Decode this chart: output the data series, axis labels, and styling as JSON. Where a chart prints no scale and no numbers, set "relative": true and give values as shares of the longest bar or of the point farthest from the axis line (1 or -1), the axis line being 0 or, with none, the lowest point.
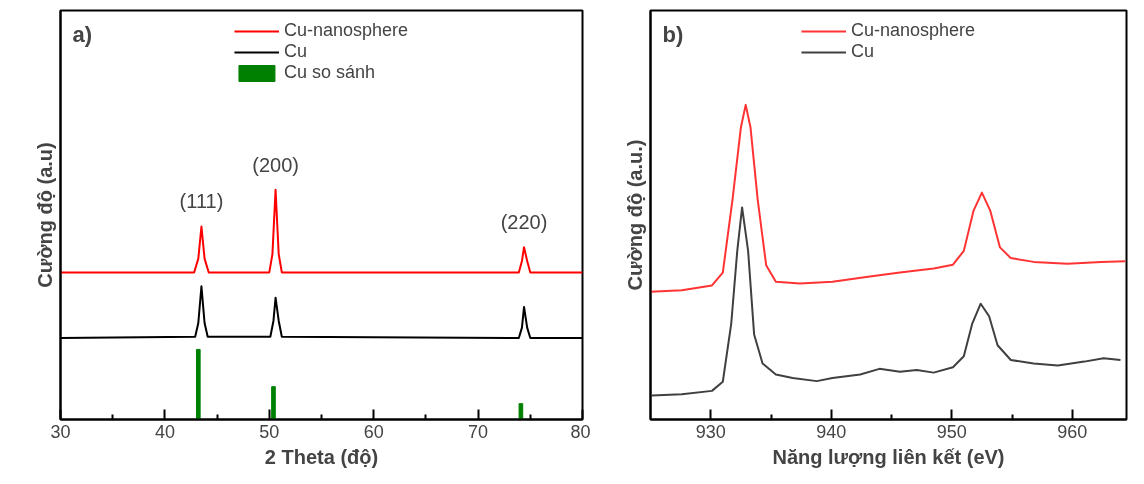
{
  "chart_data": [
    {
      "type": "line",
      "relative": true,
      "xlabel": "2 Theta (độ)",
      "ylabel": "Cường độ (a.u)",
      "xlim": [
        30,
        80
      ],
      "xticks": [
        30,
        40,
        50,
        60,
        70,
        80,
        {
          "value": 35,
          "label": null
        },
        {
          "value": 45,
          "label": null
        },
        {
          "value": 55,
          "label": null
        },
        {
          "value": 65,
          "label": null
        },
        {
          "value": 75,
          "label": null
        }
      ],
      "legend": "top",
      "grid": false,
      "tick_labels": "x",
      "annotations": [
        "a)",
        {
          "text": "(111)",
          "x": 43.5,
          "y": 0.84
        },
        {
          "text": "(200)",
          "x": 50.6,
          "y": 1.0
        },
        {
          "text": "(220)",
          "x": 74.4,
          "y": 0.75
        }
      ],
      "series": [
        {
          "name": "Cu-nanosphere",
          "color": "#ff0000",
          "x": [
            30,
            42.8,
            43.2,
            43.5,
            43.8,
            44.2,
            50.0,
            50.3,
            50.6,
            50.9,
            51.2,
            73.9,
            74.2,
            74.4,
            74.7,
            75.0,
            80
          ],
          "values": [
            0.64,
            0.64,
            0.7,
            0.84,
            0.7,
            0.64,
            0.64,
            0.72,
            1.0,
            0.72,
            0.64,
            0.64,
            0.69,
            0.75,
            0.69,
            0.64,
            0.64
          ]
        },
        {
          "name": "Cu",
          "color": "#000000",
          "x": [
            30,
            42.9,
            43.2,
            43.5,
            43.8,
            44.1,
            50.1,
            50.4,
            50.6,
            50.9,
            51.2,
            73.9,
            74.2,
            74.4,
            74.7,
            75.0,
            80
          ],
          "values": [
            0.355,
            0.36,
            0.42,
            0.58,
            0.42,
            0.36,
            0.36,
            0.43,
            0.53,
            0.43,
            0.36,
            0.355,
            0.4,
            0.49,
            0.4,
            0.355,
            0.355
          ]
        },
        {
          "name": "Cu so sánh",
          "type": "bar",
          "color": "#008000",
          "x": [
            43.2,
            50.4,
            74.1
          ],
          "values": [
            0.305,
            0.143,
            0.069
          ]
        }
      ]
    },
    {
      "type": "line",
      "relative": true,
      "xlabel": "Năng lượng liên kết (eV)",
      "ylabel": "Cường độ (a.u.)",
      "xlim": [
        925,
        964.5
      ],
      "xticks": [
        930,
        940,
        950,
        960,
        {
          "value": 935,
          "label": null
        },
        {
          "value": 945,
          "label": null
        },
        {
          "value": 955,
          "label": null
        }
      ],
      "legend": "top",
      "grid": false,
      "tick_labels": "x",
      "annotations": [
        "b)"
      ],
      "series": [
        {
          "name": "Cu-nanosphere",
          "color": "#ff3333",
          "x": [
            925.0,
            927.6,
            930.1,
            931.0,
            931.8,
            932.5,
            932.9,
            933.3,
            933.9,
            934.6,
            935.4,
            937.4,
            940.1,
            942.9,
            945.7,
            948.5,
            950.1,
            951.0,
            951.8,
            952.5,
            953.2,
            954.0,
            954.9,
            956.8,
            959.6,
            962.4,
            964.4
          ],
          "values": [
            0.406,
            0.411,
            0.426,
            0.467,
            0.697,
            0.928,
            1.0,
            0.928,
            0.697,
            0.49,
            0.438,
            0.432,
            0.438,
            0.453,
            0.467,
            0.48,
            0.492,
            0.536,
            0.663,
            0.721,
            0.663,
            0.547,
            0.513,
            0.501,
            0.495,
            0.501,
            0.503
          ]
        },
        {
          "name": "Cu",
          "color": "#404040",
          "x": [
            925.1,
            927.6,
            930.1,
            931.0,
            931.7,
            932.2,
            932.6,
            933.1,
            933.6,
            934.3,
            935.4,
            936.8,
            938.8,
            940.1,
            942.4,
            944.0,
            945.7,
            947.1,
            948.5,
            950.1,
            951.0,
            951.7,
            952.4,
            953.1,
            953.8,
            954.9,
            956.8,
            958.8,
            961.0,
            962.6,
            964.0
          ],
          "values": [
            0.076,
            0.08,
            0.091,
            0.12,
            0.305,
            0.536,
            0.674,
            0.536,
            0.27,
            0.178,
            0.143,
            0.132,
            0.122,
            0.132,
            0.143,
            0.161,
            0.152,
            0.157,
            0.149,
            0.166,
            0.201,
            0.305,
            0.368,
            0.328,
            0.236,
            0.189,
            0.178,
            0.172,
            0.184,
            0.195,
            0.189
          ]
        }
      ]
    }
  ]
}
